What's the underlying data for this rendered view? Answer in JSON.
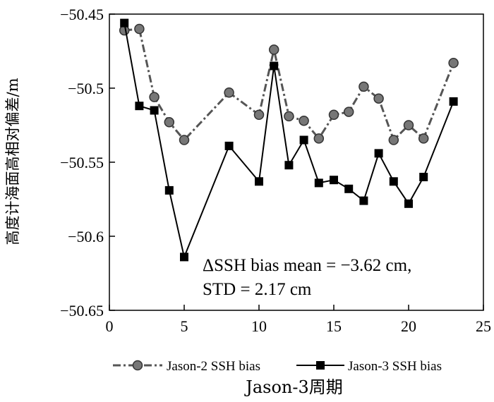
{
  "chart_data": {
    "type": "line",
    "title": "",
    "xlabel": "Jason-3周期",
    "ylabel": "高度计海面高相对偏差/m",
    "xlim": [
      0,
      25
    ],
    "ylim": [
      -50.65,
      -50.45
    ],
    "xticks": [
      0,
      5,
      10,
      15,
      20,
      25
    ],
    "xtick_labels": [
      "0",
      "5",
      "10",
      "15",
      "20",
      "25"
    ],
    "yticks": [
      -50.45,
      -50.5,
      -50.55,
      -50.6,
      -50.65
    ],
    "ytick_labels": [
      "−50.45",
      "−50.5",
      "−50.55",
      "−50.6",
      "−50.65"
    ],
    "grid": false,
    "legend_position": "bottom",
    "series": [
      {
        "name": "Jason-2 SSH bias",
        "line_style": "dash-dot",
        "marker": "circle",
        "color": "#555555",
        "x": [
          1,
          2,
          3,
          4,
          5,
          8,
          10,
          11,
          12,
          13,
          14,
          15,
          16,
          17,
          18,
          19,
          20,
          21,
          23
        ],
        "y": [
          -50.461,
          -50.46,
          -50.506,
          -50.523,
          -50.535,
          -50.503,
          -50.518,
          -50.474,
          -50.519,
          -50.522,
          -50.534,
          -50.518,
          -50.516,
          -50.499,
          -50.507,
          -50.535,
          -50.525,
          -50.534,
          -50.483
        ]
      },
      {
        "name": "Jason-3 SSH bias",
        "line_style": "solid",
        "marker": "square",
        "color": "#000000",
        "x": [
          1,
          2,
          3,
          4,
          5,
          8,
          10,
          11,
          12,
          13,
          14,
          15,
          16,
          17,
          18,
          19,
          20,
          21,
          23
        ],
        "y": [
          -50.456,
          -50.512,
          -50.515,
          -50.569,
          -50.614,
          -50.539,
          -50.563,
          -50.485,
          -50.552,
          -50.535,
          -50.564,
          -50.562,
          -50.568,
          -50.576,
          -50.544,
          -50.563,
          -50.578,
          -50.56,
          -50.509
        ]
      }
    ],
    "annotations": [
      "ΔSSH bias mean = −3.62 cm,",
      "STD = 2.17 cm"
    ]
  }
}
